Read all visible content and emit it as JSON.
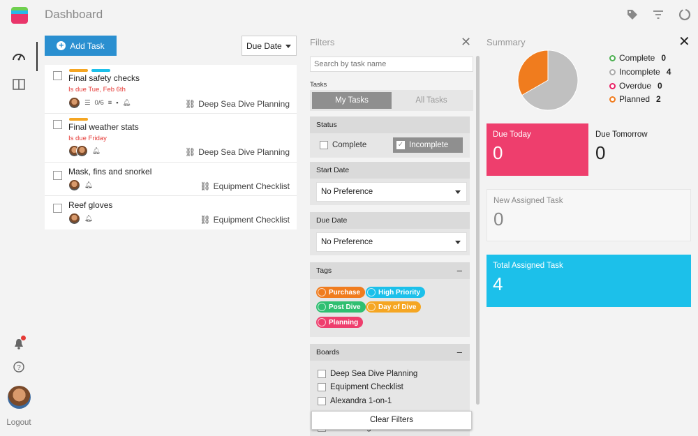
{
  "header": {
    "title": "Dashboard"
  },
  "rail": {
    "logout_label": "Logout"
  },
  "toolbar": {
    "add_task_label": "Add Task",
    "sort_value": "Due Date"
  },
  "tasks": [
    {
      "title": "Final safety checks",
      "due": "Is due Tue, Feb 6th",
      "tag_colors": [
        "#f5a623",
        "#1cc0ea"
      ],
      "checklist": "0/6",
      "board": "Deep Sea Dive Planning"
    },
    {
      "title": "Final weather stats",
      "due": "Is due Friday",
      "tag_colors": [
        "#f5a623"
      ],
      "checklist": "",
      "board": "Deep Sea Dive Planning"
    },
    {
      "title": "Mask, fins and snorkel",
      "due": "",
      "tag_colors": [],
      "checklist": "",
      "board": "Equipment Checklist"
    },
    {
      "title": "Reef gloves",
      "due": "",
      "tag_colors": [],
      "checklist": "",
      "board": "Equipment Checklist"
    }
  ],
  "filters": {
    "title": "Filters",
    "search_placeholder": "Search by task name",
    "tasks_label": "Tasks",
    "tabs": [
      "My Tasks",
      "All Tasks"
    ],
    "status_label": "Status",
    "status_options": [
      "Complete",
      "Incomplete"
    ],
    "start_date_label": "Start Date",
    "start_date_value": "No Preference",
    "due_date_label": "Due Date",
    "due_date_value": "No Preference",
    "tags_label": "Tags",
    "tags": [
      {
        "name": "Purchase",
        "color": "#f07c1e"
      },
      {
        "name": "High Priority",
        "color": "#1cc0ea"
      },
      {
        "name": "Post Dive",
        "color": "#2fbf71"
      },
      {
        "name": "Day of Dive",
        "color": "#f5a623"
      },
      {
        "name": "Planning",
        "color": "#ee3e6d"
      }
    ],
    "boards_label": "Boards",
    "boards": [
      "Deep Sea Dive Planning",
      "Equipment Checklist",
      "Alexandra 1-on-1",
      "Team Assignments"
    ],
    "clear_label": "Clear Filters"
  },
  "summary": {
    "title": "Summary",
    "legend": [
      {
        "label": "Complete",
        "count": "0",
        "color": "#4caf50"
      },
      {
        "label": "Incomplete",
        "count": "4",
        "color": "#aaaaaa"
      },
      {
        "label": "Overdue",
        "count": "0",
        "color": "#e91e63"
      },
      {
        "label": "Planned",
        "count": "2",
        "color": "#f07c1e"
      }
    ],
    "pie_colors": {
      "incomplete": "#c0c0c0",
      "planned": "#f07c1e"
    },
    "cards": {
      "due_today_label": "Due Today",
      "due_today_value": "0",
      "due_tomorrow_label": "Due Tomorrow",
      "due_tomorrow_value": "0",
      "new_assigned_label": "New Assigned Task",
      "new_assigned_value": "0",
      "total_assigned_label": "Total Assigned Task",
      "total_assigned_value": "4"
    }
  }
}
